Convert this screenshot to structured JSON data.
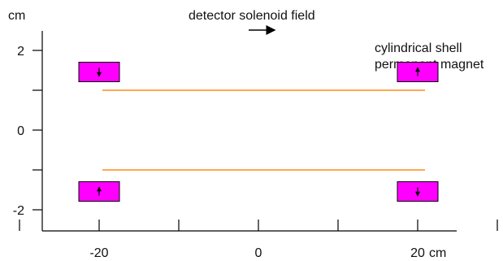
{
  "units": {
    "y_unit": "cm",
    "x_unit": "cm"
  },
  "labels": {
    "field_label": "detector solenoid field",
    "magnet_label_line1": "cylindrical shell",
    "magnet_label_line2": "permanent magnet"
  },
  "axes": {
    "y_ticks": [
      {
        "value": 2,
        "label": "2"
      },
      {
        "value": 1,
        "label": ""
      },
      {
        "value": 0,
        "label": "0"
      },
      {
        "value": -1,
        "label": ""
      },
      {
        "value": -2,
        "label": "-2"
      }
    ],
    "x_ticks": [
      {
        "value": -30,
        "label": ""
      },
      {
        "value": -20,
        "label": "-20"
      },
      {
        "value": -10,
        "label": ""
      },
      {
        "value": 0,
        "label": "0"
      },
      {
        "value": 10,
        "label": ""
      },
      {
        "value": 20,
        "label": "20"
      },
      {
        "value": 30,
        "label": ""
      }
    ]
  },
  "colors": {
    "magnet_fill": "#ff00ff",
    "magnet_stroke": "#000000",
    "beam_line": "#ff8c1a",
    "axis": "#000000"
  },
  "beam_lines_y_cm": [
    1,
    -1
  ],
  "magnets": [
    {
      "name": "magnet-top-left",
      "x_cm": -20,
      "y_cm": 1.5,
      "arrow": "down"
    },
    {
      "name": "magnet-top-right",
      "x_cm": 20,
      "y_cm": 1.5,
      "arrow": "up"
    },
    {
      "name": "magnet-bottom-left",
      "x_cm": -20,
      "y_cm": -1.5,
      "arrow": "up"
    },
    {
      "name": "magnet-bottom-right",
      "x_cm": 20,
      "y_cm": -1.5,
      "arrow": "down"
    }
  ]
}
